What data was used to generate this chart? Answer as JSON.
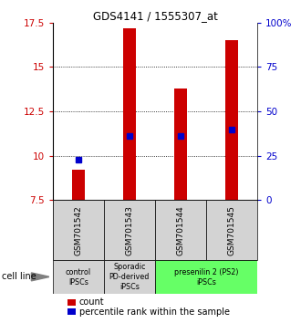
{
  "title": "GDS4141 / 1555307_at",
  "samples": [
    "GSM701542",
    "GSM701543",
    "GSM701544",
    "GSM701545"
  ],
  "count_values": [
    9.2,
    17.2,
    13.8,
    16.5
  ],
  "percentile_values": [
    9.8,
    11.1,
    11.1,
    11.5
  ],
  "bar_bottom": 7.5,
  "ylim_left": [
    7.5,
    17.5
  ],
  "ylim_right": [
    0,
    100
  ],
  "yticks_left": [
    7.5,
    10.0,
    12.5,
    15.0,
    17.5
  ],
  "yticks_right": [
    0,
    25,
    50,
    75,
    100
  ],
  "ytick_labels_left": [
    "7.5",
    "10",
    "12.5",
    "15",
    "17.5"
  ],
  "ytick_labels_right": [
    "0",
    "25",
    "50",
    "75",
    "100%"
  ],
  "count_color": "#cc0000",
  "percentile_color": "#0000cc",
  "grid_lines": [
    10.0,
    12.5,
    15.0
  ],
  "groups": [
    {
      "span": [
        0,
        0
      ],
      "label": "control\nIPSCs",
      "color": "#d3d3d3"
    },
    {
      "span": [
        1,
        1
      ],
      "label": "Sporadic\nPD-derived\niPSCs",
      "color": "#d3d3d3"
    },
    {
      "span": [
        2,
        3
      ],
      "label": "presenilin 2 (PS2)\niPSCs",
      "color": "#66ff66"
    }
  ],
  "cell_line_label": "cell line",
  "legend_count": "count",
  "legend_percentile": "percentile rank within the sample",
  "count_bar_width": 0.25,
  "sample_box_color": "#d3d3d3",
  "percentile_marker_size": 4
}
